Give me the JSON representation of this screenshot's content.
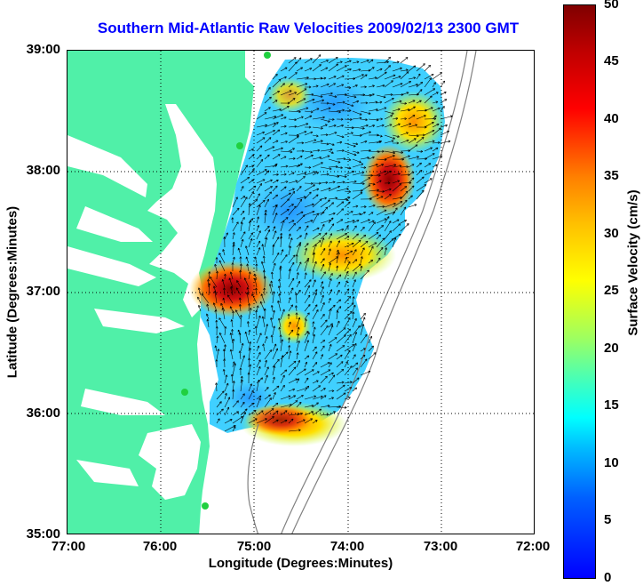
{
  "title": "Southern Mid-Atlantic Raw Velocities 2009/02/13 2300 GMT",
  "axes": {
    "xlabel": "Longitude (Degrees:Minutes)",
    "ylabel": "Latitude (Degrees:Minutes)",
    "xticks": [
      "77:00",
      "76:00",
      "75:00",
      "74:00",
      "73:00",
      "72:00"
    ],
    "yticks": [
      "39:00",
      "38:00",
      "37:00",
      "36:00",
      "35:00"
    ]
  },
  "colorbar": {
    "label": "Surface Velocity (cm/s)",
    "ticks": [
      "50",
      "45",
      "40",
      "35",
      "30",
      "25",
      "20",
      "15",
      "10",
      "5",
      "0"
    ],
    "range": [
      0,
      50
    ]
  },
  "colors": {
    "land": "#50f0a8",
    "title": "#0000ff",
    "site_marker": "#20d040",
    "arrows": "#000000",
    "bathymetry": "#808080"
  },
  "map": {
    "lon_range": [
      -77,
      -72
    ],
    "lat_range": [
      35,
      39
    ],
    "grid": "dotted",
    "radar_sites": 4
  }
}
